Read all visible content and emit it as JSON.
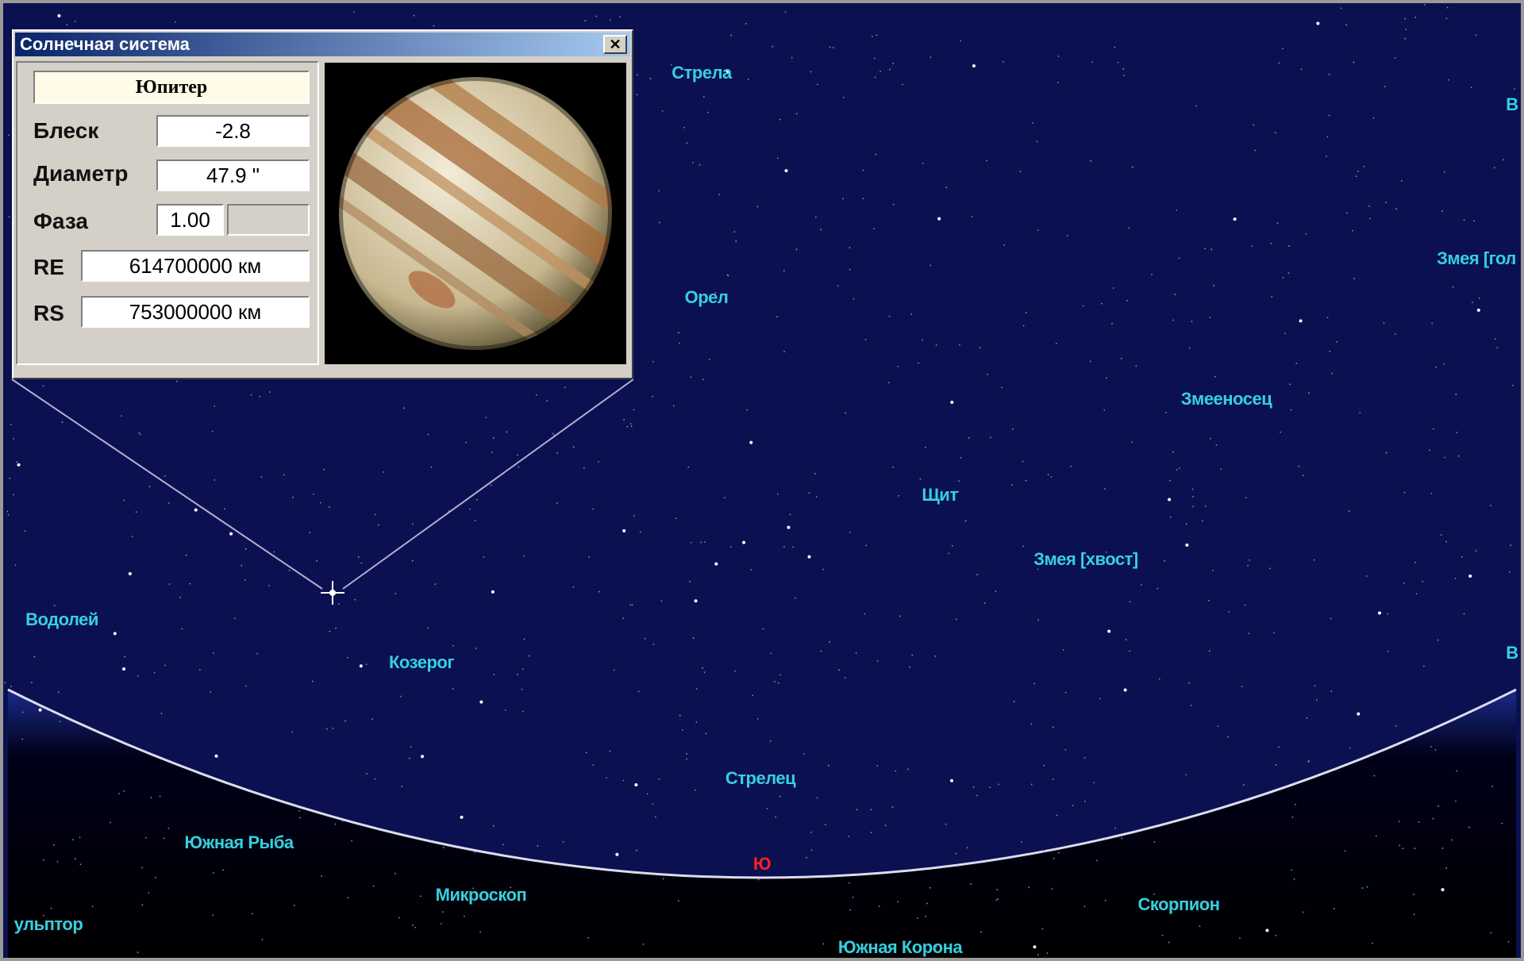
{
  "window": {
    "title": "Солнечная система",
    "close": "✕",
    "object_name": "Юпитер",
    "fields": [
      {
        "label": "Блеск",
        "value": "-2.8"
      },
      {
        "label": "Диаметр",
        "value": "47.9 \""
      },
      {
        "label": "Фаза",
        "value": "1.00"
      },
      {
        "label": "RE",
        "value": "614700000 км"
      },
      {
        "label": "RS",
        "value": "753000000 км"
      }
    ]
  },
  "sky": {
    "labels": [
      "Стрела",
      "Орел",
      "Змееносец",
      "Щит",
      "Змея [хвост]",
      "Змея [гол",
      "В",
      "В",
      "Водолей",
      "Козерог",
      "Стрелец",
      "Южная Рыба",
      "Микроскоп",
      "ульптор",
      "Скорпион",
      "Южная Корона"
    ],
    "horizon_mark": "Ю"
  }
}
